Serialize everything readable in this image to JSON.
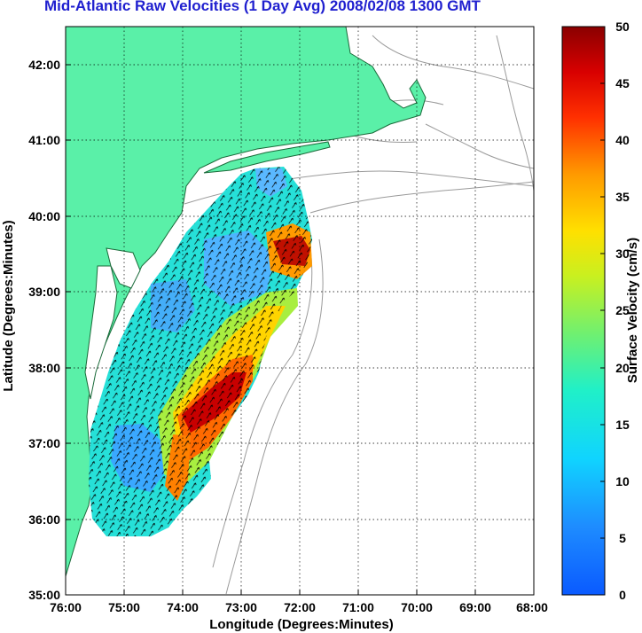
{
  "title": "Mid-Atlantic Raw Velocities (1 Day Avg) 2008/02/08 1300 GMT",
  "map": {
    "xlabel": "Longitude (Degrees:Minutes)",
    "ylabel": "Latitude (Degrees:Minutes)",
    "lon_ticks": [
      "76:00",
      "75:00",
      "74:00",
      "73:00",
      "72:00",
      "71:00",
      "70:00",
      "69:00",
      "68:00"
    ],
    "lat_ticks": [
      "42:00",
      "41:00",
      "40:00",
      "39:00",
      "38:00",
      "37:00",
      "36:00",
      "35:00"
    ],
    "land_color": "#5af0a8",
    "grid": "dotted"
  },
  "colorbar": {
    "label": "Surface Velocity (cm/s)",
    "ticks": [
      "50",
      "45",
      "40",
      "35",
      "30",
      "25",
      "20",
      "15",
      "10",
      "5",
      "0"
    ],
    "range": [
      0,
      50
    ],
    "colormap": "jet"
  }
}
